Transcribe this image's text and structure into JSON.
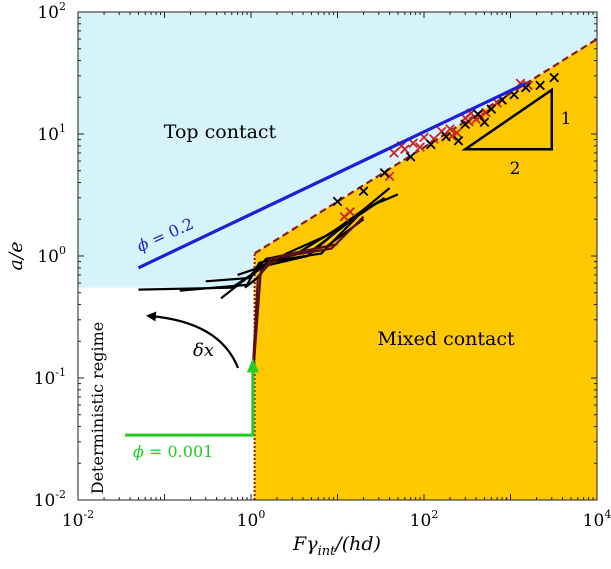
{
  "chart_data": {
    "type": "scatter",
    "x_scale": "log",
    "y_scale": "log",
    "xlim": [
      0.01,
      10000
    ],
    "ylim": [
      0.01,
      100
    ],
    "x_ticks": [
      {
        "value": 0.01,
        "base": "10",
        "exp": "-2"
      },
      {
        "value": 1,
        "base": "10",
        "exp": "0"
      },
      {
        "value": 100,
        "base": "10",
        "exp": "2"
      },
      {
        "value": 10000,
        "base": "10",
        "exp": "4"
      }
    ],
    "y_ticks": [
      {
        "value": 0.01,
        "base": "10",
        "exp": "-2"
      },
      {
        "value": 0.1,
        "base": "10",
        "exp": "-1"
      },
      {
        "value": 1,
        "base": "10",
        "exp": "0"
      },
      {
        "value": 10,
        "base": "10",
        "exp": "1"
      },
      {
        "value": 100,
        "base": "10",
        "exp": "2"
      }
    ],
    "xlabel": {
      "F": "F",
      "gamma": "γ",
      "sub": "int",
      "rest": "/(hd)"
    },
    "ylabel": "a/e",
    "colors": {
      "top_contact": "#d6f3fb",
      "mixed_contact": "#ffc800",
      "blue_line": "#1f1fd6",
      "green_line": "#22cc22",
      "dashed_line": "#8b1a1a",
      "black": "#000000",
      "red_cross": "#cc2222"
    },
    "regions": {
      "top_contact_label": "Top contact",
      "mixed_contact_label": "Mixed contact",
      "deterministic_label": "Deterministic regime",
      "top_contact_boundary_y": 0.55,
      "mixed_contact_boundary_x": 1.1
    },
    "boundary_curve": [
      [
        1.1,
        0.01
      ],
      [
        1.1,
        1.05
      ],
      [
        10000,
        60
      ]
    ],
    "blue_line": {
      "label_phi": "ϕ",
      "label_value": "= 0.2",
      "x": [
        0.05,
        1500
      ],
      "y": [
        0.8,
        26
      ]
    },
    "green_line": {
      "label_phi": "ϕ",
      "label_value": "= 0.001",
      "points": [
        [
          0.035,
          0.034
        ],
        [
          1.05,
          0.034
        ],
        [
          1.05,
          0.12
        ]
      ]
    },
    "delta_annotation": {
      "delta": "δ",
      "x": "x"
    },
    "slope_triangle": {
      "horizontal_label": "2",
      "vertical_label": "1",
      "x": [
        300,
        3000
      ],
      "y": [
        7.5,
        23
      ]
    },
    "trajectories": [
      [
        [
          0.05,
          0.53
        ],
        [
          0.6,
          0.55
        ],
        [
          1.15,
          0.75
        ],
        [
          2.6,
          1.05
        ],
        [
          8,
          1.5
        ],
        [
          20,
          2.4
        ],
        [
          40,
          3.6
        ]
      ],
      [
        [
          0.15,
          0.52
        ],
        [
          0.9,
          0.58
        ],
        [
          1.25,
          0.88
        ],
        [
          3.2,
          1.02
        ],
        [
          9,
          1.6
        ],
        [
          25,
          2.6
        ],
        [
          50,
          3.2
        ]
      ],
      [
        [
          0.3,
          0.62
        ],
        [
          0.95,
          0.66
        ],
        [
          1.35,
          0.82
        ],
        [
          4.5,
          1.0
        ],
        [
          12,
          1.8
        ],
        [
          30,
          2.8
        ]
      ],
      [
        [
          0.45,
          0.45
        ],
        [
          1.0,
          0.7
        ],
        [
          1.5,
          0.95
        ],
        [
          5,
          1.1
        ],
        [
          15,
          2.0
        ],
        [
          35,
          3.0
        ]
      ],
      [
        [
          0.7,
          0.7
        ],
        [
          1.1,
          0.78
        ],
        [
          1.7,
          0.9
        ],
        [
          6.5,
          1.05
        ],
        [
          18,
          2.2
        ]
      ],
      [
        [
          0.85,
          0.55
        ],
        [
          1.15,
          0.65
        ],
        [
          1.9,
          0.98
        ],
        [
          7.5,
          1.2
        ],
        [
          20,
          2.0
        ]
      ]
    ],
    "dark_trajectories": [
      [
        [
          1.05,
          0.12
        ],
        [
          1.2,
          0.65
        ],
        [
          1.7,
          0.95
        ],
        [
          8.5,
          1.15
        ],
        [
          20,
          2.1
        ]
      ],
      [
        [
          1.05,
          0.1
        ],
        [
          1.3,
          0.75
        ],
        [
          2.2,
          1.0
        ],
        [
          10,
          1.25
        ]
      ]
    ],
    "black_crosses": [
      [
        10,
        2.8
      ],
      [
        20,
        3.4
      ],
      [
        35,
        4.8
      ],
      [
        70,
        6.5
      ],
      [
        120,
        8.2
      ],
      [
        180,
        9.5
      ],
      [
        300,
        12
      ],
      [
        420,
        14.5
      ],
      [
        600,
        16
      ],
      [
        800,
        19
      ],
      [
        1100,
        21
      ],
      [
        1500,
        24
      ],
      [
        2200,
        25
      ],
      [
        3200,
        29
      ],
      [
        250,
        8.8
      ],
      [
        500,
        12.5
      ]
    ],
    "red_crosses": [
      [
        12,
        2.1
      ],
      [
        14,
        2.3
      ],
      [
        40,
        4.5
      ],
      [
        45,
        7
      ],
      [
        55,
        8
      ],
      [
        60,
        7.5
      ],
      [
        75,
        8.4
      ],
      [
        90,
        7.8
      ],
      [
        100,
        9.4
      ],
      [
        130,
        9.1
      ],
      [
        160,
        10.5
      ],
      [
        200,
        11
      ],
      [
        240,
        10.2
      ],
      [
        300,
        13.5
      ],
      [
        350,
        14.8
      ],
      [
        400,
        13.2
      ],
      [
        450,
        14
      ],
      [
        520,
        15
      ],
      [
        700,
        18
      ],
      [
        1300,
        26
      ],
      [
        1600,
        25
      ],
      [
        210,
        9.6
      ],
      [
        330,
        12.6
      ]
    ]
  }
}
